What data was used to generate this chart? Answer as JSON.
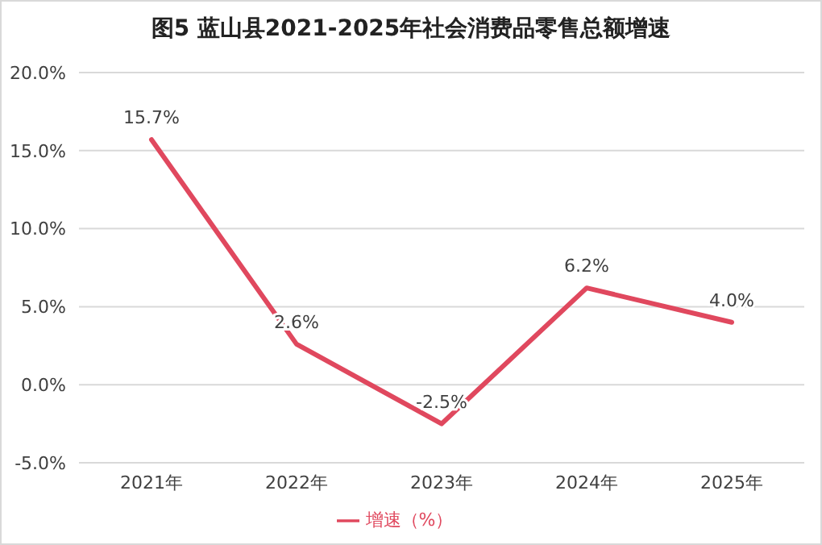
{
  "chart_data": {
    "type": "line",
    "title": "图5 蓝山县2021-2025年社会消费品零售总额增速",
    "categories": [
      "2021年",
      "2022年",
      "2023年",
      "2024年",
      "2025年"
    ],
    "series": [
      {
        "name": "增速（%）",
        "color": "#e0485e",
        "values": [
          15.7,
          2.6,
          -2.5,
          6.2,
          4.0
        ],
        "value_labels": [
          "15.7%",
          "2.6%",
          "-2.5%",
          "6.2%",
          "4.0%"
        ]
      }
    ],
    "ylim": [
      -5,
      20
    ],
    "yticks": [
      {
        "value": -5,
        "label": "-5.0%"
      },
      {
        "value": 0,
        "label": "0.0%"
      },
      {
        "value": 5,
        "label": "5.0%"
      },
      {
        "value": 10,
        "label": "10.0%"
      },
      {
        "value": 15,
        "label": "15.0%"
      },
      {
        "value": 20,
        "label": "20.0%"
      }
    ],
    "grid": "y",
    "legend": "bottom",
    "marker": "none",
    "line_style": "solid"
  }
}
